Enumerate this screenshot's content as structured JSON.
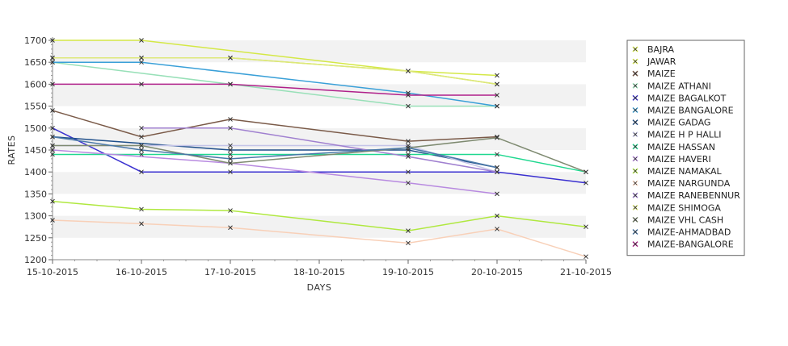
{
  "chart_data": {
    "type": "line",
    "title": "",
    "xlabel": "DAYS",
    "ylabel": "RATES",
    "categories": [
      "15-10-2015",
      "16-10-2015",
      "17-10-2015",
      "18-10-2015",
      "19-10-2015",
      "20-10-2015",
      "21-10-2015"
    ],
    "ylim": [
      1200,
      1700
    ],
    "yticks": [
      1200,
      1250,
      1300,
      1350,
      1400,
      1450,
      1500,
      1550,
      1600,
      1650,
      1700
    ],
    "grid": "alternating horizontal bands",
    "legend_position": "right",
    "series": [
      {
        "name": "BAJRA",
        "color": "#cde03a",
        "values": [
          1660,
          1660,
          1660,
          null,
          1630,
          1600,
          null
        ]
      },
      {
        "name": "JAWAR",
        "color": "#d4e846",
        "values": [
          1700,
          1700,
          null,
          null,
          1630,
          1620,
          null
        ]
      },
      {
        "name": "MAIZE",
        "color": "#7a5a48",
        "values": [
          1540,
          1480,
          1520,
          null,
          1470,
          1480,
          null
        ]
      },
      {
        "name": "MAIZE ATHANI",
        "color": "#98e0b8",
        "values": [
          1650,
          null,
          1600,
          null,
          1550,
          1550,
          null
        ]
      },
      {
        "name": "MAIZE BAGALKOT",
        "color": "#3a30d0",
        "values": [
          1500,
          1400,
          1400,
          null,
          1400,
          1400,
          1375
        ]
      },
      {
        "name": "MAIZE BANGALORE",
        "color": "#3aa0d8",
        "values": [
          1650,
          1650,
          null,
          null,
          1580,
          1550,
          null
        ]
      },
      {
        "name": "MAIZE GADAG",
        "color": "#1f4f8a",
        "values": [
          1480,
          null,
          1450,
          null,
          1450,
          1410,
          null
        ]
      },
      {
        "name": "MAIZE H P HALLI",
        "color": "#c4c4e8",
        "values": [
          1460,
          1460,
          1460,
          null,
          1460,
          1400,
          null
        ]
      },
      {
        "name": "MAIZE HASSAN",
        "color": "#20d890",
        "values": [
          1440,
          1440,
          1440,
          null,
          1440,
          1440,
          1400
        ]
      },
      {
        "name": "MAIZE HAVERI",
        "color": "#b88ae0",
        "values": [
          1450,
          null,
          1420,
          null,
          1375,
          1350,
          null
        ]
      },
      {
        "name": "MAIZE NAMAKAL",
        "color": "#b0e840",
        "values": [
          1333,
          1315,
          1312,
          null,
          1266,
          1300,
          1275
        ]
      },
      {
        "name": "MAIZE NARGUNDA",
        "color": "#f8d0b8",
        "values": [
          1290,
          1282,
          1273,
          null,
          1238,
          1270,
          1207
        ]
      },
      {
        "name": "MAIZE RANEBENNUR",
        "color": "#a080d0",
        "values": [
          null,
          1500,
          1500,
          null,
          1435,
          1400,
          null
        ]
      },
      {
        "name": "MAIZE SHIMOGA",
        "color": "#dde87a",
        "values": [
          1660,
          1660,
          1660,
          null,
          1630,
          1600,
          null
        ]
      },
      {
        "name": "MAIZE VHL CASH",
        "color": "#7e8a70",
        "values": [
          1460,
          1460,
          1420,
          null,
          1455,
          1478,
          1400
        ]
      },
      {
        "name": "MAIZE-AHMADBAD",
        "color": "#4a78a8",
        "values": [
          1480,
          1450,
          1430,
          null,
          1455,
          1410,
          null
        ]
      },
      {
        "name": "MAIZE-BANGALORE",
        "color": "#b0208a",
        "values": [
          1600,
          1600,
          1600,
          null,
          1575,
          1575,
          null
        ]
      }
    ]
  }
}
